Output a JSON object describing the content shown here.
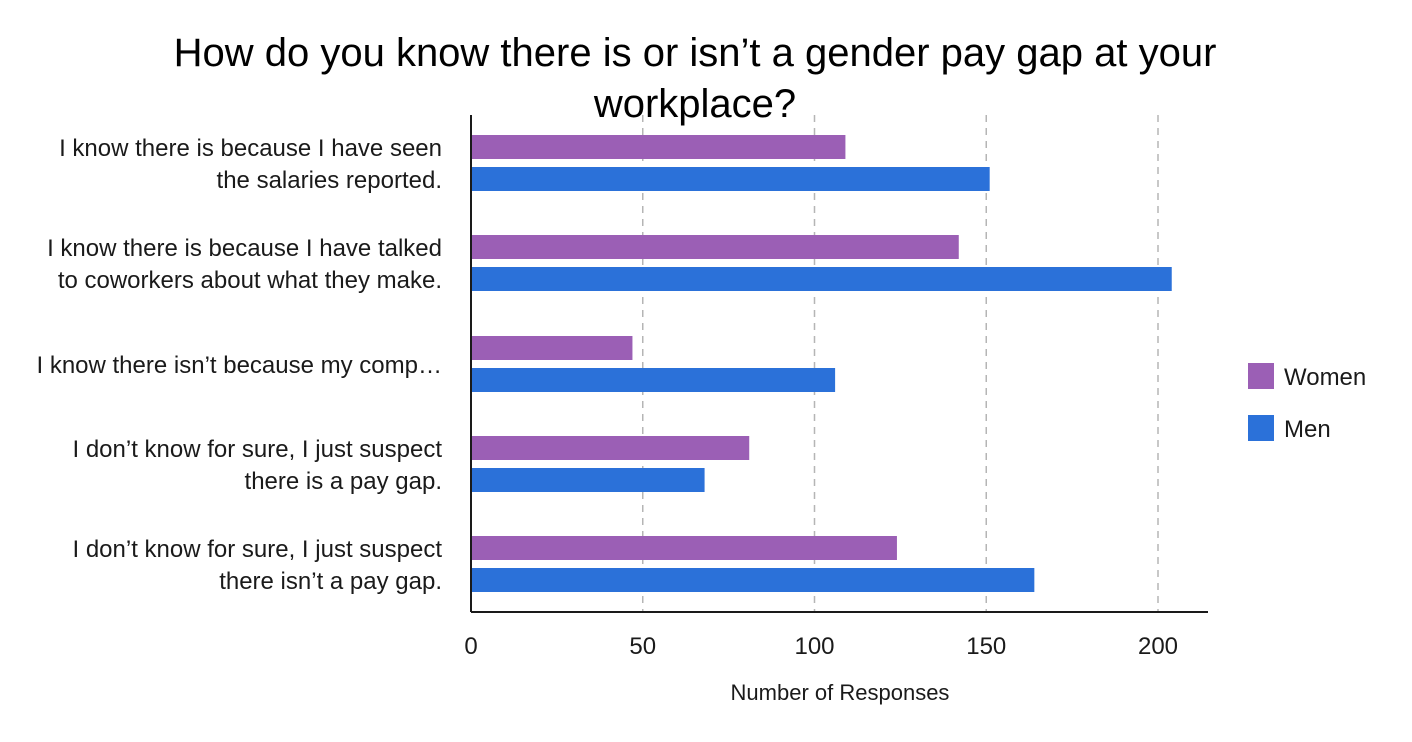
{
  "chart_data": {
    "type": "bar",
    "orientation": "horizontal",
    "title": "How do you know there is or isn’t a gender pay gap at your workplace?",
    "title_lines": [
      "How do you know there is or isn’t a gender pay gap at your",
      "workplace?"
    ],
    "xlabel": "Number of Responses",
    "ylabel": "",
    "xlim": [
      0,
      214
    ],
    "x_ticks": [
      0,
      50,
      100,
      150,
      200
    ],
    "grid": true,
    "grid_style": "dashed vertical",
    "legend_position": "right",
    "categories": [
      [
        "I know there is because I have seen",
        "the salaries reported."
      ],
      [
        "I know there is because I have talked",
        "to coworkers about what they make."
      ],
      [
        "I know there isn’t because my comp…"
      ],
      [
        "I don’t know for sure, I just suspect",
        "there is a pay gap."
      ],
      [
        "I don’t know for sure, I just suspect",
        "there isn’t a pay gap."
      ]
    ],
    "series": [
      {
        "name": "Women",
        "color": "#9b5fb5",
        "values": [
          109,
          142,
          47,
          81,
          124
        ]
      },
      {
        "name": "Men",
        "color": "#2b71d9",
        "values": [
          151,
          204,
          106,
          68,
          164
        ]
      }
    ]
  }
}
